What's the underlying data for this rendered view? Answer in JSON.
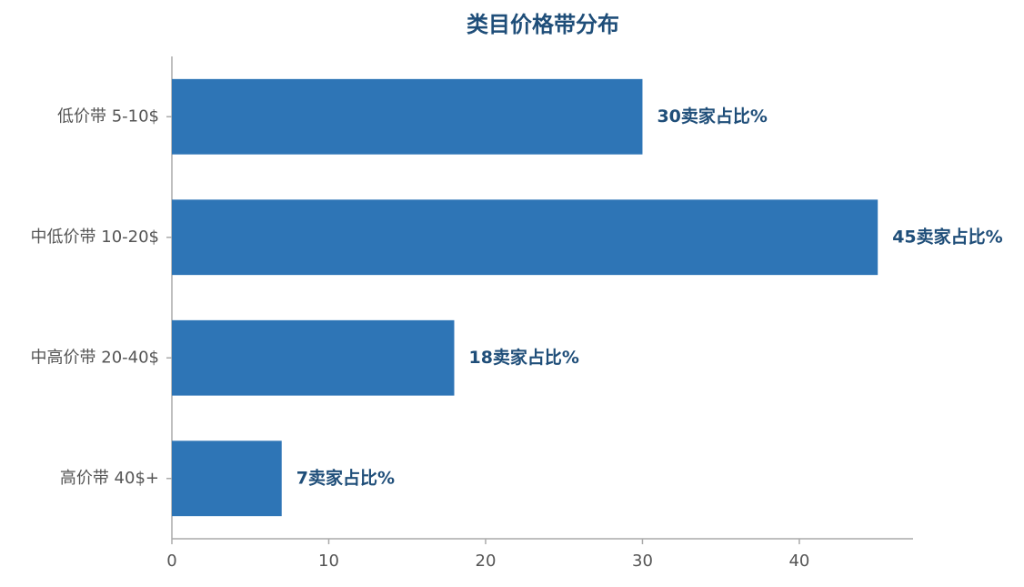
{
  "chart_data": {
    "type": "bar",
    "orientation": "horizontal",
    "title": "类目价格带分布",
    "categories": [
      "低价带 5-10$",
      "中低价带 10-20$",
      "中高价带 20-40$",
      "高价带 40$+"
    ],
    "values": [
      30,
      45,
      18,
      7
    ],
    "value_labels": [
      "30卖家占比%",
      "45卖家占比%",
      "18卖家占比%",
      "7卖家占比%"
    ],
    "color": "#2e75b6",
    "label_color": "#1f4e79",
    "xlim": [
      0,
      47.25
    ],
    "xticks": [
      0,
      10,
      20,
      30,
      40
    ],
    "grid": false
  }
}
